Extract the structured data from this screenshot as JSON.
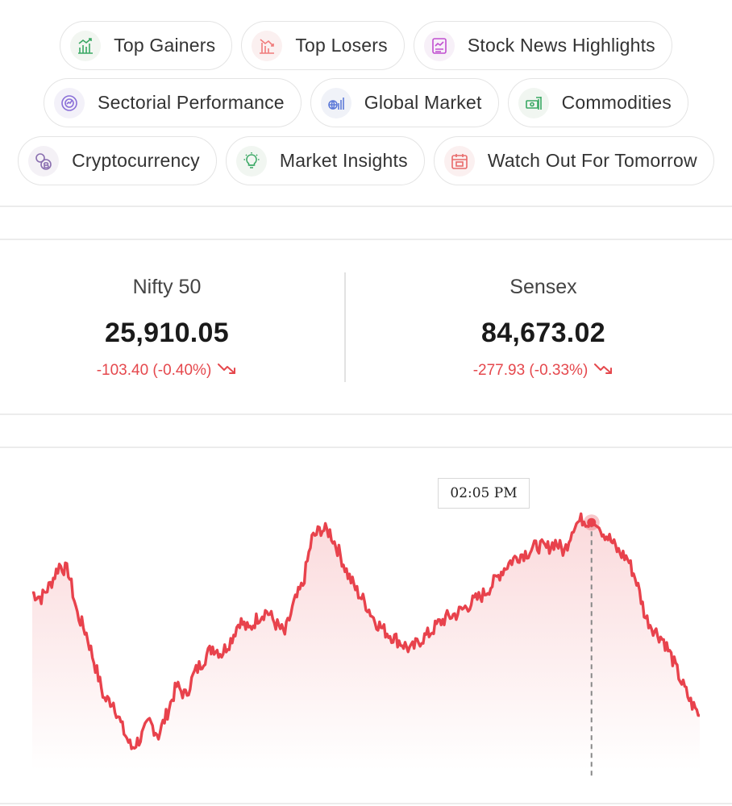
{
  "chips": [
    {
      "label": "Top Gainers",
      "icon": "top-gainers-icon",
      "color": "#3aa864",
      "bg": "#f2f6f1"
    },
    {
      "label": "Top Losers",
      "icon": "top-losers-icon",
      "color": "#f07b7b",
      "bg": "#fbf0f0"
    },
    {
      "label": "Stock News Highlights",
      "icon": "stock-news-icon",
      "color": "#c04fd0",
      "bg": "#f7f0f8"
    },
    {
      "label": "Sectorial Performance",
      "icon": "sectorial-performance-icon",
      "color": "#8a6fd8",
      "bg": "#f3f1f9"
    },
    {
      "label": "Global Market",
      "icon": "global-market-icon",
      "color": "#5d7ad8",
      "bg": "#f0f2f8"
    },
    {
      "label": "Commodities",
      "icon": "commodities-icon",
      "color": "#3aa864",
      "bg": "#f1f6f1"
    },
    {
      "label": "Cryptocurrency",
      "icon": "cryptocurrency-icon",
      "color": "#8a6fb0",
      "bg": "#f4f1f6"
    },
    {
      "label": "Market Insights",
      "icon": "market-insights-icon",
      "color": "#3aa864",
      "bg": "#f1f6f1"
    },
    {
      "label": "Watch Out For Tomorrow",
      "icon": "calendar-icon",
      "color": "#e86a6a",
      "bg": "#fbf0f0"
    }
  ],
  "indices": {
    "nifty": {
      "name": "Nifty 50",
      "value": "25,910.05",
      "change": "-103.40 (-0.40%)"
    },
    "sensex": {
      "name": "Sensex",
      "value": "84,673.02",
      "change": "-277.93 (-0.33%)"
    }
  },
  "colors": {
    "negative": "#e5484d",
    "line": "#e8424c"
  },
  "chart": {
    "tooltip_time": "02:05 PM",
    "highlight_index": 62
  },
  "chart_data": {
    "type": "line",
    "series": [
      {
        "values": [
          25985,
          25982,
          25990,
          26002,
          25998,
          25972,
          25960,
          25940,
          25920,
          25918,
          25902,
          25890,
          25896,
          25906,
          25898,
          25912,
          25928,
          25922,
          25936,
          25944,
          25952,
          25948,
          25956,
          25968,
          25962,
          25970,
          25974,
          25966,
          25960,
          25978,
          25990,
          26018,
          26024,
          26022,
          26010,
          25996,
          25986,
          25978,
          25968,
          25962,
          25958,
          25954,
          25950,
          25956,
          25960,
          25966,
          25970,
          25972,
          25976,
          25980,
          25984,
          25990,
          25998,
          26004,
          26008,
          26010,
          26014,
          26012,
          26016,
          26010,
          26026,
          26030,
          26028,
          26024,
          26018,
          26010,
          26006,
          25992,
          25970,
          25962,
          25956,
          25944,
          25930,
          25918,
          25910
        ]
      }
    ]
  }
}
